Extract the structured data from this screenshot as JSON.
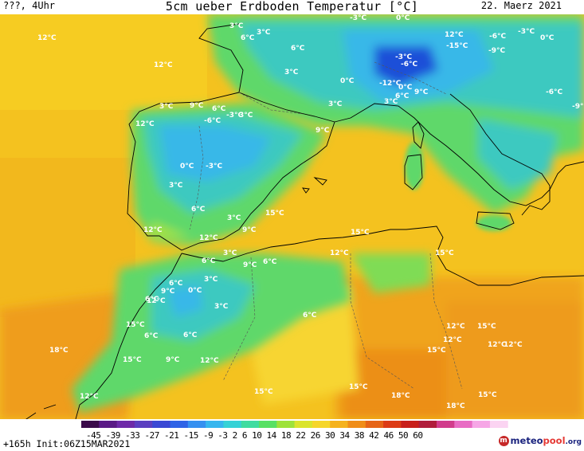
{
  "header": {
    "left": "???, 4Uhr",
    "title": "5cm ueber Erdboden Temperatur [°C]",
    "date": "22. Maerz 2021"
  },
  "footer": {
    "run": "+165h Init:06Z15MAR2021",
    "scale_ticks": [
      "-45",
      "-39",
      "-33",
      "-27",
      "-21",
      "-15",
      "-9",
      "-3",
      "2",
      "6",
      "10",
      "14",
      "18",
      "22",
      "26",
      "30",
      "34",
      "38",
      "42",
      "46",
      "50",
      "60"
    ],
    "logo": {
      "meteo": "meteo",
      "pool": "pool",
      "org": ".org"
    }
  },
  "colors": {
    "cold_deep": "#1d4fd8",
    "cold": "#38b8e8",
    "cool": "#3ec9c0",
    "mild": "#5fd86a",
    "warm_green": "#a8e23c",
    "yellow": "#f5d62a",
    "warm": "#f2b51c",
    "hot": "#ee9a1a",
    "sea": "#f3bf1f",
    "border": "#000000"
  },
  "labels": [
    {
      "t": "12°C"
    },
    {
      "t": "12°C"
    },
    {
      "t": "3°C"
    },
    {
      "t": "3°C"
    },
    {
      "t": "6°C"
    },
    {
      "t": "6°C"
    },
    {
      "t": "3°C"
    },
    {
      "t": "-3°C"
    },
    {
      "t": "12°C"
    },
    {
      "t": "-6°C"
    },
    {
      "t": "-15°C"
    },
    {
      "t": "-9°C"
    },
    {
      "t": "-3°C"
    },
    {
      "t": "0°C"
    },
    {
      "t": "0°C"
    },
    {
      "t": "-12°C"
    },
    {
      "t": "0°C"
    },
    {
      "t": "3°C"
    },
    {
      "t": "6°C"
    },
    {
      "t": "9°C"
    },
    {
      "t": "-3°C"
    },
    {
      "t": "-6°C"
    },
    {
      "t": "0°C"
    },
    {
      "t": "9°C"
    },
    {
      "t": "3°C"
    },
    {
      "t": "3°C"
    },
    {
      "t": "-9°C"
    },
    {
      "t": "-6°C"
    },
    {
      "t": "12°C"
    },
    {
      "t": "-6°C"
    },
    {
      "t": "-3°C"
    },
    {
      "t": "6°C"
    },
    {
      "t": "3°C"
    },
    {
      "t": "9°C"
    },
    {
      "t": "0°C"
    },
    {
      "t": "-3°C"
    },
    {
      "t": "3°C"
    },
    {
      "t": "3°C"
    },
    {
      "t": "6°C"
    },
    {
      "t": "15°C"
    },
    {
      "t": "12°C"
    },
    {
      "t": "9°C"
    },
    {
      "t": "6°C"
    },
    {
      "t": "15°C"
    },
    {
      "t": "6°C"
    },
    {
      "t": "3°C"
    },
    {
      "t": "9°C"
    },
    {
      "t": "6°C"
    },
    {
      "t": "15°C"
    },
    {
      "t": "12°C"
    },
    {
      "t": "3°C"
    },
    {
      "t": "6°C"
    },
    {
      "t": "9°C"
    },
    {
      "t": "12°C"
    },
    {
      "t": "15°C"
    },
    {
      "t": "3°C"
    },
    {
      "t": "6°C"
    },
    {
      "t": "12°C"
    },
    {
      "t": "15°C"
    },
    {
      "t": "18°C"
    },
    {
      "t": "12°C"
    },
    {
      "t": "15°C"
    },
    {
      "t": "18°C"
    },
    {
      "t": "12°C"
    },
    {
      "t": "12°C"
    },
    {
      "t": "12°C"
    },
    {
      "t": "15°C"
    },
    {
      "t": "15°C"
    },
    {
      "t": "9°C"
    },
    {
      "t": "6°C"
    },
    {
      "t": "12°C"
    },
    {
      "t": "0°C"
    },
    {
      "t": "15°C"
    },
    {
      "t": "15°C"
    },
    {
      "t": "18°C"
    },
    {
      "t": "12°C"
    },
    {
      "t": "6°C"
    }
  ]
}
